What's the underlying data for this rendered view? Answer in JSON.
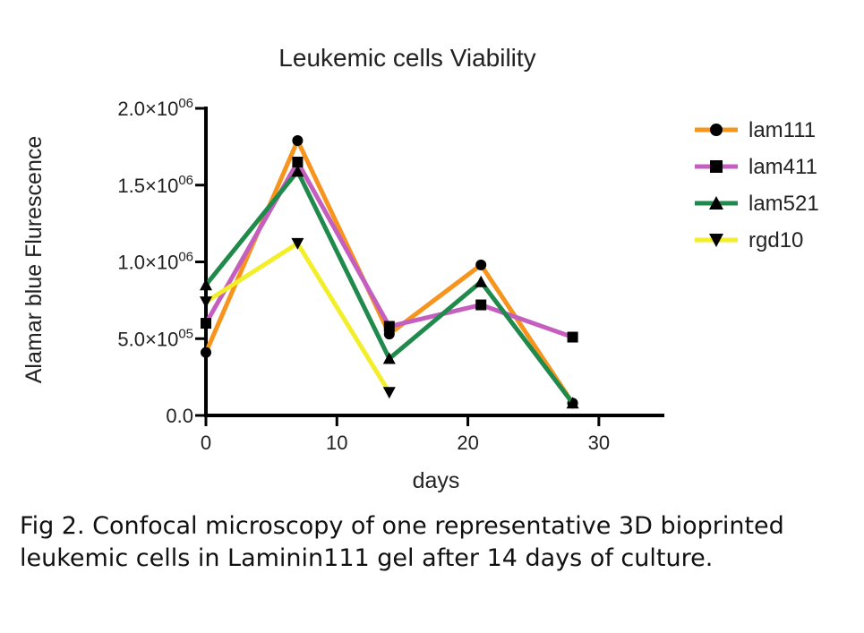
{
  "chart_data": {
    "type": "line",
    "title": "Leukemic cells Viability",
    "xlabel": "days",
    "ylabel": "Alamar blue Flurescence",
    "xlim": [
      0,
      35
    ],
    "ylim": [
      0,
      2000000
    ],
    "x_ticks": [
      0,
      10,
      20,
      30
    ],
    "x_tick_labels": [
      "0",
      "10",
      "20",
      "30"
    ],
    "y_ticks": [
      0,
      500000,
      1000000,
      1500000,
      2000000
    ],
    "y_tick_labels": [
      {
        "mantissa": "0.0",
        "exp": ""
      },
      {
        "mantissa": "5.0×10",
        "exp": "05"
      },
      {
        "mantissa": "1.0×10",
        "exp": "06"
      },
      {
        "mantissa": "1.5×10",
        "exp": "06"
      },
      {
        "mantissa": "2.0×10",
        "exp": "06"
      }
    ],
    "grid": false,
    "legend_position": "top-right",
    "series": [
      {
        "name": "lam111",
        "color": "#f7941d",
        "marker": "circle",
        "x": [
          0,
          7,
          14,
          21,
          28
        ],
        "y": [
          410000,
          1790000,
          530000,
          980000,
          80000
        ]
      },
      {
        "name": "lam411",
        "color": "#c45fbf",
        "marker": "square",
        "x": [
          0,
          7,
          14,
          21,
          28
        ],
        "y": [
          600000,
          1650000,
          580000,
          720000,
          510000
        ]
      },
      {
        "name": "lam521",
        "color": "#1f8a4c",
        "marker": "triangle-up",
        "x": [
          0,
          7,
          14,
          21,
          28
        ],
        "y": [
          850000,
          1590000,
          370000,
          870000,
          80000
        ]
      },
      {
        "name": "rgd10",
        "color": "#f2ee2a",
        "marker": "triangle-down",
        "x": [
          0,
          7,
          14
        ],
        "y": [
          740000,
          1120000,
          150000
        ]
      }
    ]
  },
  "caption": "Fig 2. Confocal microscopy of one representative 3D bioprinted leukemic cells in Laminin111 gel after 14 days of culture."
}
